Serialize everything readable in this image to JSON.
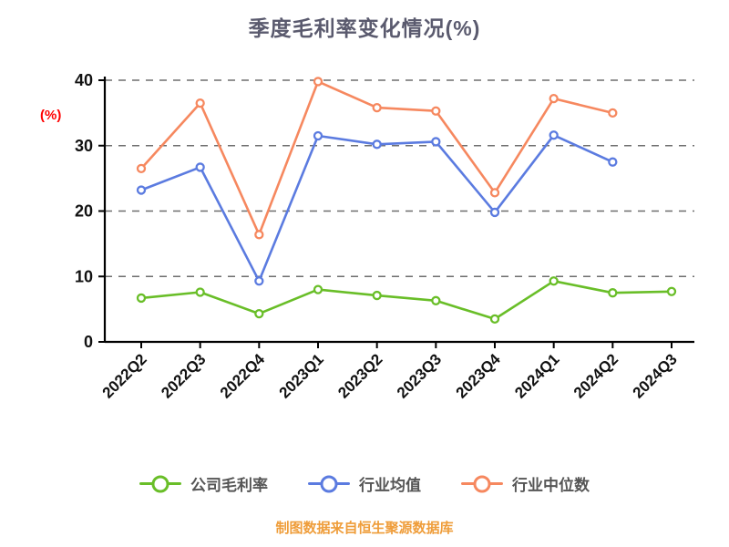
{
  "chart_data": {
    "type": "line",
    "title": "季度毛利率变化情况(%)",
    "ylabel": "(%)",
    "footer": "制图数据来自恒生聚源数据库",
    "categories": [
      "2022Q2",
      "2022Q3",
      "2022Q4",
      "2023Q1",
      "2023Q2",
      "2023Q3",
      "2023Q4",
      "2024Q1",
      "2024Q2",
      "2024Q3"
    ],
    "ylim": [
      0,
      40
    ],
    "yticks": [
      0,
      10,
      20,
      30,
      40
    ],
    "grid": "horizontal-dashed",
    "legend_position": "bottom",
    "series": [
      {
        "name": "公司毛利率",
        "color": "#69be28",
        "values": [
          6.7,
          7.6,
          4.3,
          8.0,
          7.1,
          6.3,
          3.5,
          9.3,
          7.5,
          7.7
        ]
      },
      {
        "name": "行业均值",
        "color": "#5b7be0",
        "values": [
          23.2,
          26.7,
          9.3,
          31.5,
          30.2,
          30.6,
          19.8,
          31.6,
          27.5,
          null
        ]
      },
      {
        "name": "行业中位数",
        "color": "#f6885f",
        "values": [
          26.5,
          36.5,
          16.4,
          39.8,
          35.8,
          35.3,
          22.8,
          37.2,
          35.0,
          null
        ]
      }
    ],
    "colors": {
      "title": "#5a5a6e",
      "ylabel": "#ff0000",
      "axis": "#000000",
      "tick_label": "#111111",
      "grid": "#6e6e6e",
      "legend_text": "#555555",
      "footer": "#ef9d3a",
      "background": "#ffffff",
      "marker_fill": "#ffffff"
    }
  }
}
